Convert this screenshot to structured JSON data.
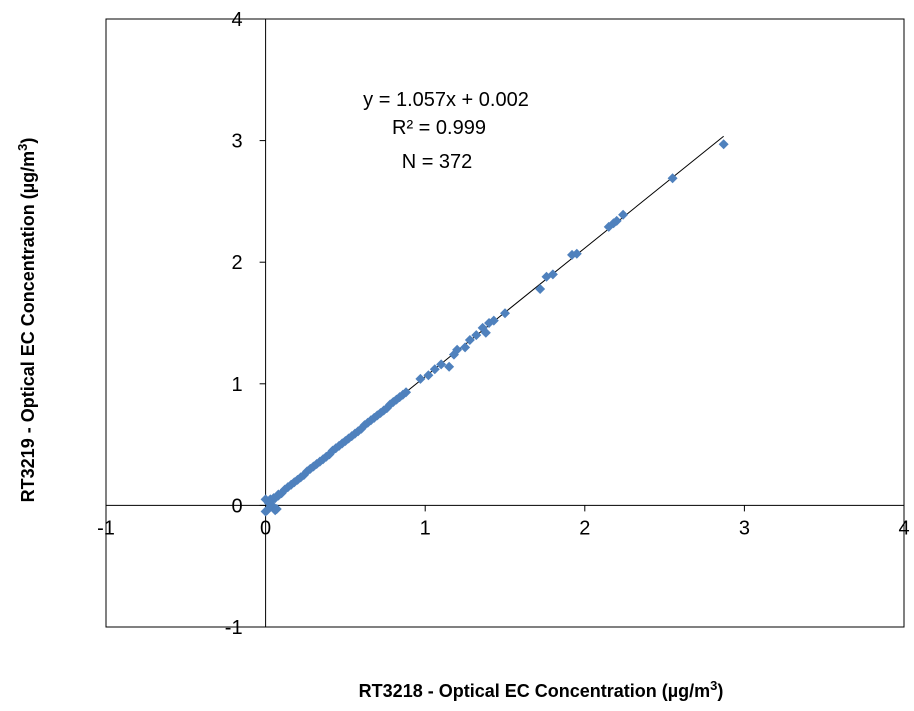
{
  "chart_data": {
    "type": "scatter",
    "xlabel": "RT3218 - Optical EC Concentration (µg/m",
    "ylabel": "RT3219 - Optical EC Concentration (µg/m",
    "label_superscript": "3",
    "label_suffix": ")",
    "xlim": [
      -1,
      4
    ],
    "ylim": [
      -1,
      4
    ],
    "x_ticks": [
      "-1",
      "0",
      "1",
      "2",
      "3",
      "4"
    ],
    "y_ticks": [
      "-1",
      "0",
      "1",
      "2",
      "3",
      "4"
    ],
    "grid": false,
    "legend": "none",
    "marker": "diamond",
    "marker_color": "#4F81BD",
    "trendline": {
      "slope": 1.057,
      "intercept": 0.002,
      "x_range": [
        0,
        2.87
      ],
      "color": "#000000"
    },
    "annotations": {
      "equation": "y = 1.057x + 0.002",
      "r_squared": "R² = 0.999",
      "n": "N = 372"
    },
    "series": [
      {
        "x": [
          0.0,
          0.01,
          0.02,
          0.03,
          0.04,
          0.05,
          0.06,
          0.07,
          0.08,
          0.0,
          0.02,
          0.04,
          0.06,
          0.08,
          0.1,
          0.12,
          0.14,
          0.16,
          0.18,
          0.2,
          0.22,
          0.24,
          0.26,
          0.28,
          0.3,
          0.32,
          0.34,
          0.36,
          0.38,
          0.4,
          0.42,
          0.44,
          0.46,
          0.48,
          0.5,
          0.52,
          0.54,
          0.56,
          0.58,
          0.6,
          0.62,
          0.64,
          0.66,
          0.68,
          0.7,
          0.72,
          0.74,
          0.76,
          0.78,
          0.8,
          0.82,
          0.84,
          0.86,
          0.88,
          0.97,
          1.02,
          1.06,
          1.1,
          1.15,
          1.18,
          1.2,
          1.25,
          1.28,
          1.32,
          1.36,
          1.38,
          1.4,
          1.43,
          1.5,
          1.72,
          1.76,
          1.8,
          1.92,
          1.95,
          2.15,
          2.18,
          2.2,
          2.24,
          2.55,
          2.87
        ],
        "y": [
          -0.05,
          -0.04,
          0.03,
          0.05,
          0.0,
          0.06,
          -0.04,
          -0.03,
          0.08,
          0.05,
          0.02,
          0.04,
          0.06,
          0.09,
          0.1,
          0.13,
          0.15,
          0.17,
          0.19,
          0.21,
          0.23,
          0.25,
          0.28,
          0.3,
          0.32,
          0.34,
          0.36,
          0.38,
          0.4,
          0.42,
          0.45,
          0.47,
          0.49,
          0.51,
          0.53,
          0.55,
          0.57,
          0.59,
          0.61,
          0.63,
          0.66,
          0.68,
          0.7,
          0.72,
          0.74,
          0.76,
          0.78,
          0.8,
          0.83,
          0.85,
          0.87,
          0.89,
          0.91,
          0.93,
          1.04,
          1.07,
          1.12,
          1.16,
          1.14,
          1.24,
          1.28,
          1.3,
          1.36,
          1.4,
          1.46,
          1.42,
          1.5,
          1.52,
          1.58,
          1.78,
          1.88,
          1.9,
          2.06,
          2.07,
          2.29,
          2.32,
          2.34,
          2.39,
          2.69,
          2.97
        ]
      }
    ]
  }
}
